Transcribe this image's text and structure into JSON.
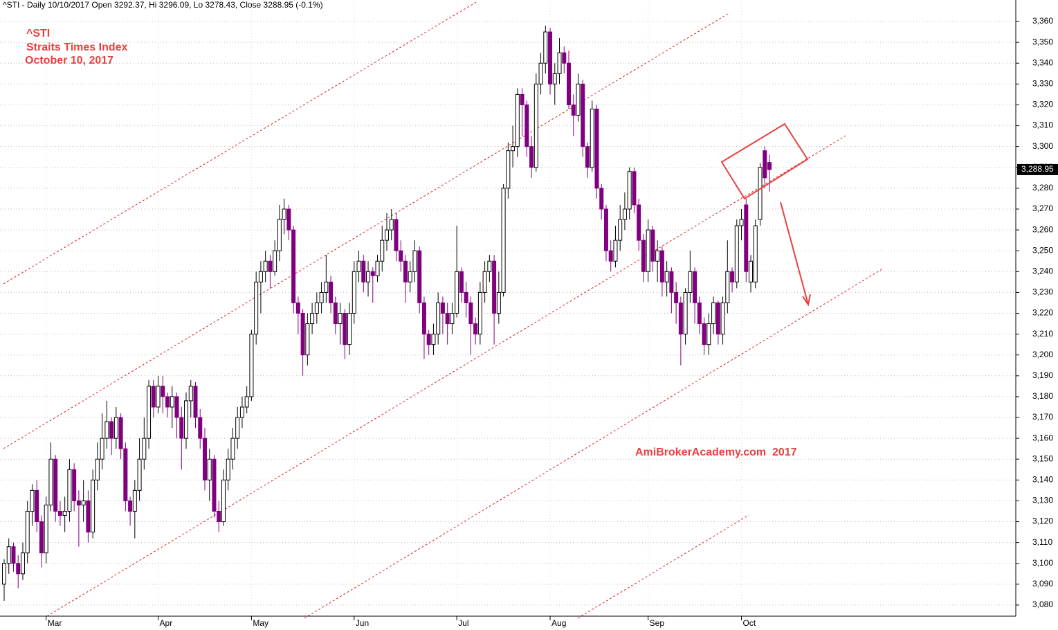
{
  "chart_data": {
    "type": "candlestick",
    "title": "^STI - Daily 10/10/2017 Open 3292.37, Hi 3296.09, Lo 3278.43, Close 3288.95 (-0.1%)",
    "annotations": [
      "^STI",
      "Straits Times Index",
      "October 10, 2017",
      "AmiBrokerAcademy.com  2017"
    ],
    "up_color": "#ffffff",
    "down_color": "#800080",
    "ylim": [
      3075,
      3365
    ],
    "yticks": [
      {
        "value": 3080,
        "label": "3,080"
      },
      {
        "value": 3090,
        "label": "3,090"
      },
      {
        "value": 3100,
        "label": "3,100"
      },
      {
        "value": 3110,
        "label": "3,110"
      },
      {
        "value": 3120,
        "label": "3,120"
      },
      {
        "value": 3130,
        "label": "3,130"
      },
      {
        "value": 3140,
        "label": "3,140"
      },
      {
        "value": 3150,
        "label": "3,150"
      },
      {
        "value": 3160,
        "label": "3,160"
      },
      {
        "value": 3170,
        "label": "3,170"
      },
      {
        "value": 3180,
        "label": "3,180"
      },
      {
        "value": 3190,
        "label": "3,190"
      },
      {
        "value": 3200,
        "label": "3,200"
      },
      {
        "value": 3210,
        "label": "3,210"
      },
      {
        "value": 3220,
        "label": "3,220"
      },
      {
        "value": 3230,
        "label": "3,230"
      },
      {
        "value": 3240,
        "label": "3,240"
      },
      {
        "value": 3250,
        "label": "3,250"
      },
      {
        "value": 3260,
        "label": "3,260"
      },
      {
        "value": 3270,
        "label": "3,270"
      },
      {
        "value": 3280,
        "label": "3,280"
      },
      {
        "value": 3290,
        "label": "3,290"
      },
      {
        "value": 3300,
        "label": "3,300"
      },
      {
        "value": 3310,
        "label": "3,310"
      },
      {
        "value": 3320,
        "label": "3,320"
      },
      {
        "value": 3330,
        "label": "3,330"
      },
      {
        "value": 3340,
        "label": "3,340"
      },
      {
        "value": 3350,
        "label": "3,350"
      },
      {
        "value": 3360,
        "label": "3,360"
      }
    ],
    "grid": true,
    "last_price": {
      "value": 3288.95,
      "label": "3,288.95"
    },
    "categories": [
      null,
      null,
      null,
      null,
      null,
      null,
      null,
      null,
      null,
      "Mar",
      null,
      null,
      null,
      null,
      null,
      null,
      null,
      null,
      null,
      null,
      null,
      null,
      null,
      null,
      null,
      null,
      null,
      null,
      null,
      null,
      null,
      null,
      null,
      "Apr",
      null,
      null,
      null,
      null,
      null,
      null,
      null,
      null,
      null,
      null,
      null,
      null,
      null,
      null,
      null,
      null,
      null,
      null,
      null,
      "May",
      null,
      null,
      null,
      null,
      null,
      null,
      null,
      null,
      null,
      null,
      null,
      null,
      null,
      null,
      null,
      null,
      null,
      null,
      null,
      null,
      null,
      "Jun",
      null,
      null,
      null,
      null,
      null,
      null,
      null,
      null,
      null,
      null,
      null,
      null,
      null,
      null,
      null,
      null,
      null,
      null,
      null,
      null,
      null,
      "Jul",
      null,
      null,
      null,
      null,
      null,
      null,
      null,
      null,
      null,
      null,
      null,
      null,
      null,
      null,
      null,
      null,
      null,
      null,
      null,
      "Aug",
      null,
      null,
      null,
      null,
      null,
      null,
      null,
      null,
      null,
      null,
      null,
      null,
      null,
      null,
      null,
      null,
      null,
      null,
      null,
      null,
      "Sep",
      null,
      null,
      null,
      null,
      null,
      null,
      null,
      null,
      null,
      null,
      null,
      null,
      null,
      null,
      null,
      null,
      null,
      null,
      null,
      "Oct",
      null,
      null,
      null,
      null,
      null,
      null
    ],
    "candles": [
      [
        3090,
        3102,
        3082,
        3100
      ],
      [
        3100,
        3112,
        3095,
        3108
      ],
      [
        3108,
        3110,
        3096,
        3100
      ],
      [
        3100,
        3104,
        3088,
        3095
      ],
      [
        3095,
        3110,
        3092,
        3105
      ],
      [
        3105,
        3130,
        3100,
        3125
      ],
      [
        3125,
        3138,
        3118,
        3135
      ],
      [
        3135,
        3140,
        3115,
        3120
      ],
      [
        3120,
        3123,
        3098,
        3105
      ],
      [
        3105,
        3132,
        3100,
        3128
      ],
      [
        3128,
        3158,
        3125,
        3150
      ],
      [
        3150,
        3152,
        3120,
        3125
      ],
      [
        3125,
        3130,
        3118,
        3123
      ],
      [
        3123,
        3132,
        3115,
        3125
      ],
      [
        3125,
        3150,
        3120,
        3145
      ],
      [
        3145,
        3148,
        3125,
        3130
      ],
      [
        3130,
        3135,
        3108,
        3128
      ],
      [
        3128,
        3140,
        3120,
        3130
      ],
      [
        3130,
        3135,
        3110,
        3115
      ],
      [
        3115,
        3145,
        3112,
        3140
      ],
      [
        3140,
        3158,
        3135,
        3150
      ],
      [
        3150,
        3172,
        3145,
        3160
      ],
      [
        3160,
        3178,
        3155,
        3168
      ],
      [
        3168,
        3170,
        3152,
        3160
      ],
      [
        3160,
        3175,
        3155,
        3170
      ],
      [
        3170,
        3172,
        3150,
        3155
      ],
      [
        3155,
        3158,
        3125,
        3130
      ],
      [
        3130,
        3132,
        3118,
        3125
      ],
      [
        3125,
        3140,
        3112,
        3135
      ],
      [
        3135,
        3160,
        3130,
        3150
      ],
      [
        3150,
        3170,
        3145,
        3160
      ],
      [
        3160,
        3188,
        3155,
        3185
      ],
      [
        3185,
        3188,
        3170,
        3175
      ],
      [
        3175,
        3190,
        3172,
        3185
      ],
      [
        3185,
        3190,
        3172,
        3180
      ],
      [
        3180,
        3182,
        3170,
        3175
      ],
      [
        3175,
        3185,
        3165,
        3180
      ],
      [
        3180,
        3182,
        3160,
        3170
      ],
      [
        3170,
        3175,
        3145,
        3160
      ],
      [
        3160,
        3182,
        3155,
        3178
      ],
      [
        3178,
        3188,
        3170,
        3185
      ],
      [
        3185,
        3187,
        3165,
        3170
      ],
      [
        3170,
        3174,
        3155,
        3160
      ],
      [
        3160,
        3165,
        3135,
        3140
      ],
      [
        3140,
        3155,
        3130,
        3150
      ],
      [
        3150,
        3152,
        3122,
        3125
      ],
      [
        3125,
        3130,
        3115,
        3120
      ],
      [
        3120,
        3145,
        3118,
        3140
      ],
      [
        3140,
        3155,
        3135,
        3150
      ],
      [
        3150,
        3165,
        3145,
        3160
      ],
      [
        3160,
        3175,
        3155,
        3170
      ],
      [
        3170,
        3180,
        3165,
        3175
      ],
      [
        3175,
        3185,
        3172,
        3180
      ],
      [
        3180,
        3212,
        3178,
        3210
      ],
      [
        3210,
        3240,
        3205,
        3235
      ],
      [
        3235,
        3245,
        3220,
        3240
      ],
      [
        3240,
        3250,
        3235,
        3245
      ],
      [
        3245,
        3248,
        3232,
        3240
      ],
      [
        3240,
        3255,
        3238,
        3250
      ],
      [
        3250,
        3272,
        3245,
        3265
      ],
      [
        3265,
        3275,
        3258,
        3270
      ],
      [
        3270,
        3272,
        3255,
        3260
      ],
      [
        3260,
        3262,
        3220,
        3225
      ],
      [
        3225,
        3228,
        3210,
        3220
      ],
      [
        3220,
        3222,
        3190,
        3200
      ],
      [
        3200,
        3220,
        3195,
        3215
      ],
      [
        3215,
        3225,
        3210,
        3220
      ],
      [
        3220,
        3230,
        3215,
        3225
      ],
      [
        3225,
        3235,
        3220,
        3230
      ],
      [
        3230,
        3248,
        3225,
        3235
      ],
      [
        3235,
        3238,
        3220,
        3225
      ],
      [
        3225,
        3228,
        3210,
        3215
      ],
      [
        3215,
        3225,
        3205,
        3220
      ],
      [
        3220,
        3222,
        3198,
        3205
      ],
      [
        3205,
        3225,
        3200,
        3220
      ],
      [
        3220,
        3245,
        3215,
        3240
      ],
      [
        3240,
        3250,
        3235,
        3245
      ],
      [
        3245,
        3248,
        3230,
        3235
      ],
      [
        3235,
        3245,
        3228,
        3240
      ],
      [
        3240,
        3242,
        3225,
        3238
      ],
      [
        3238,
        3248,
        3235,
        3245
      ],
      [
        3245,
        3262,
        3240,
        3255
      ],
      [
        3255,
        3268,
        3250,
        3260
      ],
      [
        3260,
        3270,
        3255,
        3265
      ],
      [
        3265,
        3268,
        3245,
        3250
      ],
      [
        3250,
        3255,
        3240,
        3245
      ],
      [
        3245,
        3248,
        3225,
        3235
      ],
      [
        3235,
        3245,
        3230,
        3240
      ],
      [
        3240,
        3255,
        3235,
        3250
      ],
      [
        3250,
        3252,
        3220,
        3225
      ],
      [
        3225,
        3228,
        3198,
        3210
      ],
      [
        3210,
        3212,
        3200,
        3205
      ],
      [
        3205,
        3215,
        3200,
        3210
      ],
      [
        3210,
        3230,
        3205,
        3225
      ],
      [
        3225,
        3228,
        3210,
        3220
      ],
      [
        3220,
        3225,
        3205,
        3215
      ],
      [
        3215,
        3225,
        3210,
        3220
      ],
      [
        3220,
        3262,
        3218,
        3240
      ],
      [
        3240,
        3242,
        3225,
        3230
      ],
      [
        3230,
        3235,
        3218,
        3225
      ],
      [
        3225,
        3228,
        3200,
        3215
      ],
      [
        3215,
        3218,
        3205,
        3210
      ],
      [
        3210,
        3235,
        3205,
        3230
      ],
      [
        3230,
        3245,
        3225,
        3240
      ],
      [
        3240,
        3248,
        3235,
        3245
      ],
      [
        3245,
        3248,
        3205,
        3220
      ],
      [
        3220,
        3240,
        3215,
        3230
      ],
      [
        3230,
        3282,
        3228,
        3280
      ],
      [
        3280,
        3302,
        3275,
        3298
      ],
      [
        3298,
        3310,
        3290,
        3300
      ],
      [
        3300,
        3328,
        3295,
        3325
      ],
      [
        3325,
        3328,
        3305,
        3320
      ],
      [
        3320,
        3322,
        3295,
        3300
      ],
      [
        3300,
        3305,
        3285,
        3290
      ],
      [
        3290,
        3335,
        3288,
        3330
      ],
      [
        3330,
        3345,
        3325,
        3340
      ],
      [
        3340,
        3358,
        3335,
        3355
      ],
      [
        3355,
        3357,
        3325,
        3330
      ],
      [
        3330,
        3340,
        3320,
        3335
      ],
      [
        3335,
        3352,
        3330,
        3345
      ],
      [
        3345,
        3348,
        3335,
        3340
      ],
      [
        3340,
        3346,
        3318,
        3320
      ],
      [
        3320,
        3325,
        3305,
        3315
      ],
      [
        3315,
        3335,
        3312,
        3330
      ],
      [
        3330,
        3332,
        3295,
        3300
      ],
      [
        3300,
        3302,
        3285,
        3290
      ],
      [
        3290,
        3322,
        3288,
        3318
      ],
      [
        3318,
        3320,
        3275,
        3280
      ],
      [
        3280,
        3282,
        3265,
        3270
      ],
      [
        3270,
        3272,
        3245,
        3250
      ],
      [
        3250,
        3255,
        3240,
        3245
      ],
      [
        3245,
        3262,
        3242,
        3255
      ],
      [
        3255,
        3272,
        3250,
        3265
      ],
      [
        3265,
        3278,
        3260,
        3270
      ],
      [
        3270,
        3290,
        3265,
        3288
      ],
      [
        3288,
        3290,
        3268,
        3272
      ],
      [
        3272,
        3275,
        3250,
        3255
      ],
      [
        3255,
        3258,
        3235,
        3240
      ],
      [
        3240,
        3265,
        3235,
        3260
      ],
      [
        3260,
        3262,
        3240,
        3245
      ],
      [
        3245,
        3255,
        3235,
        3250
      ],
      [
        3250,
        3252,
        3228,
        3235
      ],
      [
        3235,
        3245,
        3228,
        3240
      ],
      [
        3240,
        3242,
        3220,
        3230
      ],
      [
        3230,
        3235,
        3215,
        3225
      ],
      [
        3225,
        3228,
        3195,
        3210
      ],
      [
        3210,
        3232,
        3205,
        3230
      ],
      [
        3230,
        3250,
        3225,
        3240
      ],
      [
        3240,
        3242,
        3215,
        3225
      ],
      [
        3225,
        3228,
        3210,
        3215
      ],
      [
        3215,
        3218,
        3200,
        3205
      ],
      [
        3205,
        3220,
        3200,
        3215
      ],
      [
        3215,
        3228,
        3210,
        3225
      ],
      [
        3225,
        3226,
        3205,
        3210
      ],
      [
        3210,
        3228,
        3205,
        3225
      ],
      [
        3225,
        3255,
        3220,
        3240
      ],
      [
        3240,
        3242,
        3230,
        3235
      ],
      [
        3235,
        3265,
        3232,
        3262
      ],
      [
        3262,
        3270,
        3255,
        3265
      ],
      [
        3272,
        3275,
        3235,
        3240
      ],
      [
        3235,
        3248,
        3230,
        3245
      ],
      [
        3235,
        3265,
        3232,
        3262
      ],
      [
        3265,
        3292,
        3262,
        3290
      ],
      [
        3298,
        3300,
        3280,
        3285
      ],
      [
        3292.37,
        3296.09,
        3278.43,
        3288.95
      ]
    ]
  }
}
